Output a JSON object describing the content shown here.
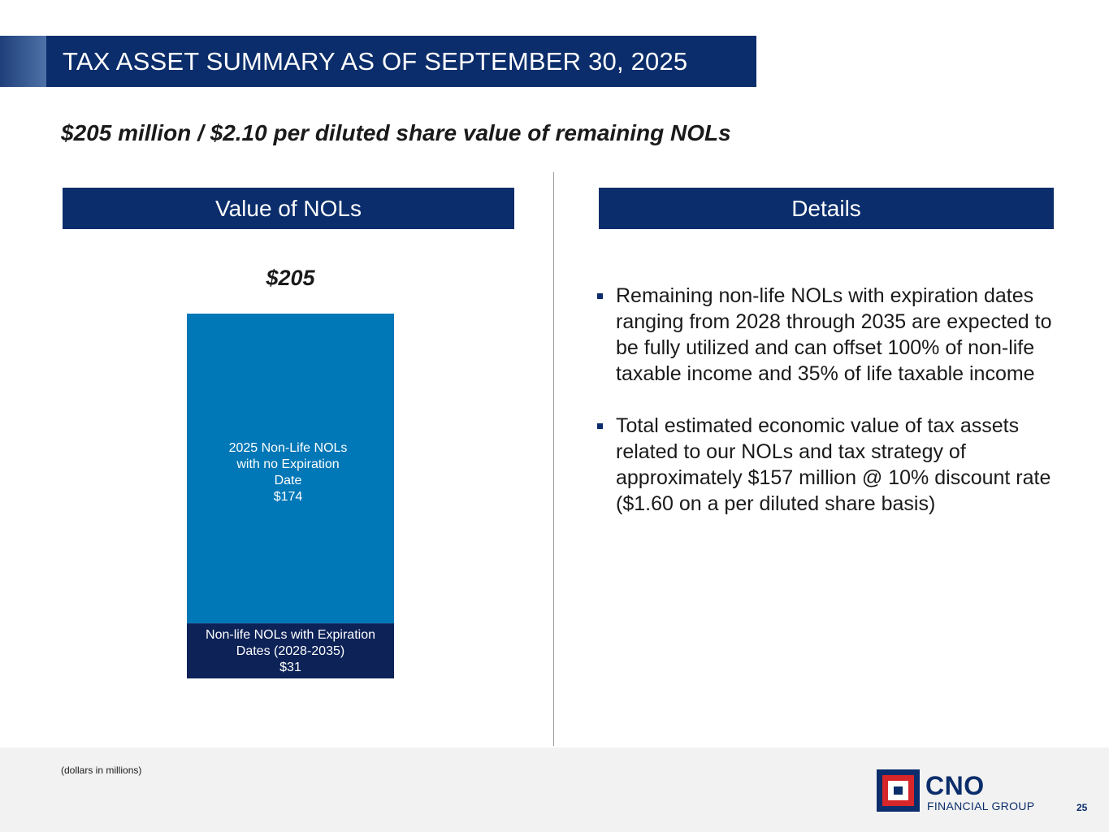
{
  "slide": {
    "title": "TAX ASSET SUMMARY AS OF SEPTEMBER 30, 2025",
    "subtitle": "$205 million / $2.10 per diluted share value of remaining NOLs",
    "page_number": "25",
    "footnote": "(dollars in millions)"
  },
  "sections": {
    "left_header": "Value of NOLs",
    "right_header": "Details"
  },
  "details": {
    "bullets": [
      "Remaining non-life NOLs with expiration dates ranging from 2028 through 2035 are expected to be fully utilized and can offset 100% of non-life taxable income and 35% of life taxable income",
      "Total estimated economic value of tax assets related to our NOLs and tax strategy of approximately $157 million @ 10% discount rate ($1.60 on a per diluted share basis)"
    ]
  },
  "logo": {
    "name": "CNO",
    "sub": "FINANCIAL GROUP"
  },
  "colors": {
    "navy": "#0b2d6b",
    "segment_top": "#0077b6",
    "segment_bottom": "#0d2257",
    "logo_red": "#d7262a"
  },
  "chart_data": {
    "type": "bar",
    "stacked": true,
    "categories": [
      "Value of NOLs"
    ],
    "total_label": "$205",
    "total": 205,
    "units": "dollars in millions",
    "series": [
      {
        "name": "Non-life NOLs with Expiration Dates (2028-2035)",
        "label_lines": [
          "Non-life NOLs with Expiration",
          "Dates (2028-2035)",
          "$31"
        ],
        "values": [
          31
        ]
      },
      {
        "name": "2025 Non-Life NOLs with no Expiration Date",
        "label_lines": [
          "2025 Non-Life NOLs",
          "with no Expiration",
          "Date",
          "$174"
        ],
        "values": [
          174
        ]
      }
    ],
    "title": "",
    "xlabel": "",
    "ylabel": ""
  }
}
